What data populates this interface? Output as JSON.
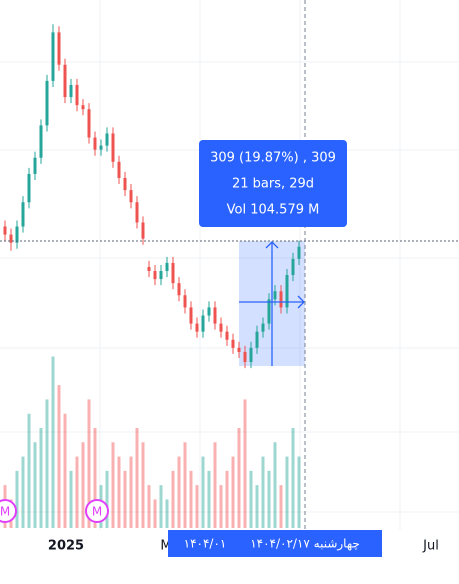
{
  "chart_data": {
    "type": "candlestick",
    "open": [
      1900,
      1880,
      1860,
      1900,
      1960,
      2030,
      2070,
      2150,
      2260,
      2380,
      2300,
      2220,
      2250,
      2200,
      2190,
      2120,
      2090,
      2100,
      2130,
      2060,
      2020,
      1990,
      1960,
      1910,
      1800,
      1790,
      1770,
      1790,
      1810,
      1760,
      1730,
      1700,
      1660,
      1640,
      1680,
      1700,
      1660,
      1640,
      1620,
      1600,
      1590,
      1565,
      1600,
      1640,
      1660,
      1720,
      1740,
      1700,
      1780,
      1820
    ],
    "high": [
      1915,
      1895,
      1915,
      1975,
      2045,
      2085,
      2165,
      2275,
      2400,
      2395,
      2315,
      2265,
      2265,
      2215,
      2205,
      2135,
      2115,
      2145,
      2145,
      2075,
      2035,
      2005,
      1975,
      1925,
      1815,
      1805,
      1805,
      1825,
      1825,
      1775,
      1745,
      1715,
      1675,
      1695,
      1715,
      1715,
      1675,
      1655,
      1635,
      1615,
      1605,
      1615,
      1655,
      1675,
      1735,
      1755,
      1755,
      1795,
      1835,
      1865
    ],
    "low": [
      1865,
      1840,
      1845,
      1885,
      1945,
      2015,
      2055,
      2135,
      2245,
      2285,
      2205,
      2205,
      2185,
      2175,
      2105,
      2075,
      2075,
      2085,
      2045,
      2005,
      1975,
      1945,
      1895,
      1855,
      1775,
      1755,
      1755,
      1775,
      1745,
      1715,
      1685,
      1645,
      1625,
      1625,
      1665,
      1645,
      1625,
      1605,
      1585,
      1575,
      1550,
      1550,
      1585,
      1625,
      1645,
      1705,
      1685,
      1685,
      1765,
      1805
    ],
    "close": [
      1880,
      1860,
      1900,
      1960,
      2030,
      2070,
      2150,
      2260,
      2380,
      2300,
      2220,
      2250,
      2200,
      2190,
      2120,
      2090,
      2100,
      2130,
      2060,
      2020,
      1990,
      1960,
      1910,
      1870,
      1790,
      1770,
      1790,
      1810,
      1760,
      1730,
      1700,
      1660,
      1640,
      1680,
      1700,
      1660,
      1640,
      1620,
      1600,
      1590,
      1565,
      1600,
      1640,
      1660,
      1720,
      1740,
      1700,
      1780,
      1820,
      1850
    ],
    "volume": [
      3,
      2,
      4,
      5,
      8,
      6,
      7,
      9,
      12,
      10,
      8,
      4,
      5,
      6,
      9,
      7,
      3,
      4,
      6,
      5,
      4,
      5,
      7,
      6,
      3,
      2,
      3,
      2,
      4,
      5,
      6,
      4,
      3,
      5,
      4,
      6,
      3,
      4,
      5,
      7,
      9,
      4,
      3,
      5,
      4,
      6,
      3,
      5,
      7,
      5
    ],
    "ylim": [
      1125,
      2460
    ],
    "volume_ylim": [
      0,
      14
    ],
    "up_color": "#26a69a",
    "down_color": "#ef5350",
    "x_labels": [
      "2025",
      "M",
      "Jul"
    ],
    "markers": [
      "M",
      "M"
    ]
  },
  "measure": {
    "line1": "309 (19.87%) , 309",
    "line2": "21 bars, 29d",
    "line3": "Vol 104.579 M"
  },
  "crosshair": {
    "date": "چهارشنبه ۱۴۰۴/۰۲/۱۷",
    "previous": "۱۴۰۴/۰۱"
  }
}
